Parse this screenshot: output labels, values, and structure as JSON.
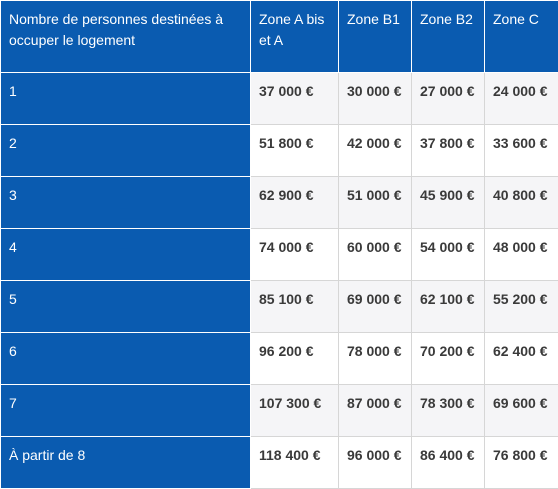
{
  "table": {
    "headers": [
      "Nombre de personnes destinées à occuper le logement",
      "Zone A bis et A",
      "Zone B1",
      "Zone B2",
      "Zone C"
    ],
    "rows": [
      {
        "label": "1",
        "values": [
          "37 000 €",
          "30 000 €",
          "27 000 €",
          "24 000 €"
        ]
      },
      {
        "label": "2",
        "values": [
          "51 800 €",
          "42 000 €",
          "37 800 €",
          "33 600 €"
        ]
      },
      {
        "label": "3",
        "values": [
          "62 900 €",
          "51 000 €",
          "45 900 €",
          "40 800 €"
        ]
      },
      {
        "label": "4",
        "values": [
          "74 000 €",
          "60 000 €",
          "54 000 €",
          "48 000 €"
        ]
      },
      {
        "label": "5",
        "values": [
          "85 100 €",
          "69 000 €",
          "62 100 €",
          "55 200 €"
        ]
      },
      {
        "label": "6",
        "values": [
          "96 200 €",
          "78 000 €",
          "70 200 €",
          "62 400 €"
        ]
      },
      {
        "label": "7",
        "values": [
          "107 300 €",
          "87 000 €",
          "78 300 €",
          "69 600 €"
        ]
      },
      {
        "label": "À partir de 8",
        "values": [
          "118 400 €",
          "96 000 €",
          "86 400 €",
          "76 800 €"
        ]
      }
    ]
  },
  "colors": {
    "header_blue": "#0a5bb0",
    "text_dark": "#3a3a3a",
    "stripe": "#f5f5f7"
  }
}
